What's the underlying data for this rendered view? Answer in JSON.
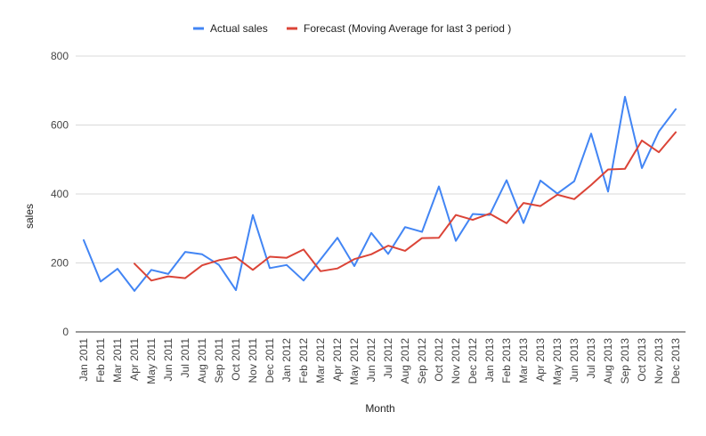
{
  "chart_data": {
    "type": "line",
    "title": "",
    "xlabel": "Month",
    "ylabel": "sales",
    "ylim": [
      0,
      800
    ],
    "yticks": [
      0,
      200,
      400,
      600,
      800
    ],
    "grid": true,
    "legend": "top-center",
    "categories": [
      "Jan 2011",
      "Feb 2011",
      "Mar 2011",
      "Apr 2011",
      "May 2011",
      "Jun 2011",
      "Jul 2011",
      "Aug 2011",
      "Sep 2011",
      "Oct 2011",
      "Nov 2011",
      "Dec 2011",
      "Jan 2012",
      "Feb 2012",
      "Mar 2012",
      "Apr 2012",
      "May 2012",
      "Jun 2012",
      "Jul 2012",
      "Aug 2012",
      "Sep 2012",
      "Oct 2012",
      "Nov 2012",
      "Dec 2012",
      "Jan 2013",
      "Feb 2013",
      "Mar 2013",
      "Apr 2013",
      "May 2013",
      "Jun 2013",
      "Jul 2013",
      "Aug 2013",
      "Sep 2013",
      "Oct 2013",
      "Nov 2013",
      "Dec 2013"
    ],
    "series": [
      {
        "name": "Actual sales",
        "color": "#4285f4",
        "values": [
          266,
          146,
          183,
          119,
          180,
          168,
          232,
          225,
          194,
          121,
          339,
          185,
          194,
          149,
          210,
          273,
          191,
          287,
          226,
          304,
          290,
          422,
          264,
          342,
          339,
          440,
          316,
          439,
          401,
          437,
          575,
          407,
          682,
          475,
          581,
          646
        ]
      },
      {
        "name": "Forecast (Moving Average for last 3 period )",
        "color": "#db4437",
        "values": [
          null,
          null,
          null,
          198,
          149,
          161,
          156,
          193,
          208,
          217,
          180,
          218,
          215,
          239,
          176,
          184,
          211,
          225,
          250,
          235,
          272,
          273,
          339,
          325,
          343,
          315,
          374,
          365,
          398,
          385,
          426,
          471,
          473,
          555,
          521,
          579
        ]
      }
    ]
  }
}
